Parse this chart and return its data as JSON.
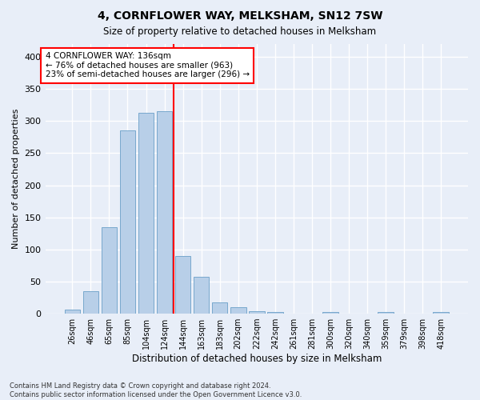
{
  "title": "4, CORNFLOWER WAY, MELKSHAM, SN12 7SW",
  "subtitle": "Size of property relative to detached houses in Melksham",
  "xlabel": "Distribution of detached houses by size in Melksham",
  "ylabel": "Number of detached properties",
  "bar_labels": [
    "26sqm",
    "46sqm",
    "65sqm",
    "85sqm",
    "104sqm",
    "124sqm",
    "144sqm",
    "163sqm",
    "183sqm",
    "202sqm",
    "222sqm",
    "242sqm",
    "261sqm",
    "281sqm",
    "300sqm",
    "320sqm",
    "340sqm",
    "359sqm",
    "379sqm",
    "398sqm",
    "418sqm"
  ],
  "bar_values": [
    6,
    35,
    135,
    285,
    313,
    315,
    90,
    57,
    17,
    10,
    4,
    2,
    0,
    0,
    2,
    0,
    0,
    2,
    0,
    0,
    2
  ],
  "bar_color": "#b8cfe8",
  "bar_edge_color": "#6a9fc8",
  "vline_x": 5.5,
  "vline_color": "red",
  "annotation_text": "4 CORNFLOWER WAY: 136sqm\n← 76% of detached houses are smaller (963)\n23% of semi-detached houses are larger (296) →",
  "annotation_box_color": "white",
  "annotation_box_edge": "red",
  "ylim": [
    0,
    420
  ],
  "yticks": [
    0,
    50,
    100,
    150,
    200,
    250,
    300,
    350,
    400
  ],
  "footer": "Contains HM Land Registry data © Crown copyright and database right 2024.\nContains public sector information licensed under the Open Government Licence v3.0.",
  "bg_color": "#e8eef8",
  "grid_color": "white"
}
